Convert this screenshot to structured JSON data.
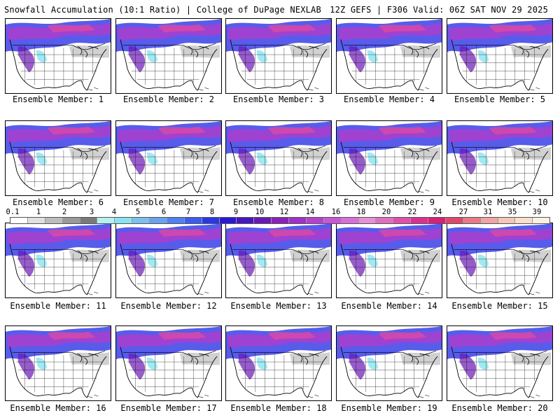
{
  "header": {
    "left": "Snowfall Accumulation (10:1 Ratio) | College of DuPage NEXLAB",
    "right": "12Z GEFS | F306 Valid: 06Z SAT NOV 29 2025"
  },
  "panels": [
    {
      "label": "Ensemble Member: 1"
    },
    {
      "label": "Ensemble Member: 2"
    },
    {
      "label": "Ensemble Member: 3"
    },
    {
      "label": "Ensemble Member: 4"
    },
    {
      "label": "Ensemble Member: 5"
    },
    {
      "label": "Ensemble Member: 6"
    },
    {
      "label": "Ensemble Member: 7"
    },
    {
      "label": "Ensemble Member: 8"
    },
    {
      "label": "Ensemble Member: 9"
    },
    {
      "label": "Ensemble Member: 10"
    },
    {
      "label": "Ensemble Member: 11"
    },
    {
      "label": "Ensemble Member: 12"
    },
    {
      "label": "Ensemble Member: 13"
    },
    {
      "label": "Ensemble Member: 14"
    },
    {
      "label": "Ensemble Member: 15"
    },
    {
      "label": "Ensemble Member: 16"
    },
    {
      "label": "Ensemble Member: 17"
    },
    {
      "label": "Ensemble Member: 18"
    },
    {
      "label": "Ensemble Member: 19"
    },
    {
      "label": "Ensemble Member: 20"
    }
  ],
  "legend": {
    "labels": [
      "0.1",
      "1",
      "2",
      "3",
      "4",
      "5",
      "6",
      "7",
      "8",
      "9",
      "10",
      "12",
      "14",
      "16",
      "18",
      "20",
      "22",
      "24",
      "27",
      "31",
      "35",
      "39"
    ],
    "colors": [
      "#ffffff",
      "#e0e0e0",
      "#bdbdbd",
      "#9a9a9a",
      "#7a7a7a",
      "#b7f0f0",
      "#8ae4f0",
      "#7cc0f0",
      "#6aa0ee",
      "#4f7ff0",
      "#3c5cf0",
      "#2a36e8",
      "#2a18d8",
      "#4616c0",
      "#6a18b4",
      "#8a22b8",
      "#a030c8",
      "#b840d0",
      "#c858d8",
      "#d870d8",
      "#e690d8",
      "#e070c0",
      "#e050a8",
      "#dc3090",
      "#d82078",
      "#e0486a",
      "#e87a88",
      "#f0a4a4",
      "#f6c6b8",
      "#fae0cc",
      "#fdf0e0"
    ]
  }
}
